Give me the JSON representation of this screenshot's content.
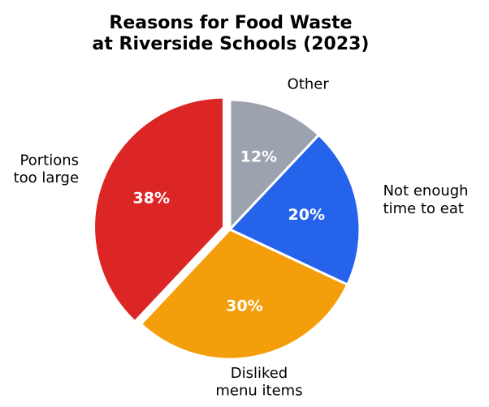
{
  "chart_data": {
    "type": "pie",
    "title": "Reasons for Food Waste\nat Riverside Schools (2023)",
    "categories": [
      "Other",
      "Not enough\ntime to eat",
      "Disliked\nmenu items",
      "Portions\ntoo large"
    ],
    "values": [
      12,
      20,
      30,
      38
    ],
    "value_labels": [
      "12%",
      "20%",
      "30%",
      "38%"
    ],
    "colors": [
      "#9ca3af",
      "#2563eb",
      "#f59e0b",
      "#dc2626"
    ],
    "explode": [
      0,
      0,
      0,
      0.05
    ]
  }
}
